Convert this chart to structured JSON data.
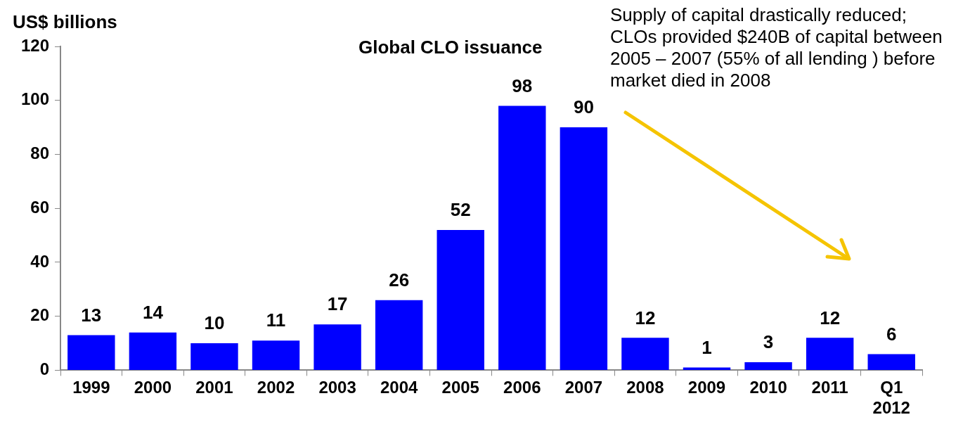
{
  "chart_data": {
    "type": "bar",
    "title": "Global CLO issuance",
    "ylabel": "US$ billions",
    "categories": [
      "1999",
      "2000",
      "2001",
      "2002",
      "2003",
      "2004",
      "2005",
      "2006",
      "2007",
      "2008",
      "2009",
      "2010",
      "2011",
      "Q1\n2012"
    ],
    "values": [
      13,
      14,
      10,
      11,
      17,
      26,
      52,
      98,
      90,
      12,
      1,
      3,
      12,
      6
    ],
    "color": "#0000ff",
    "ylim": [
      0,
      120
    ],
    "yticks": [
      0,
      20,
      40,
      60,
      80,
      100,
      120
    ],
    "grid": false,
    "legend": false,
    "data_labels": true,
    "annotations": [
      "Supply  of capital drastically reduced; CLOs provided $240B of capital between  2005 – 2007 (55% of all lending ) before market died in 2008"
    ]
  }
}
